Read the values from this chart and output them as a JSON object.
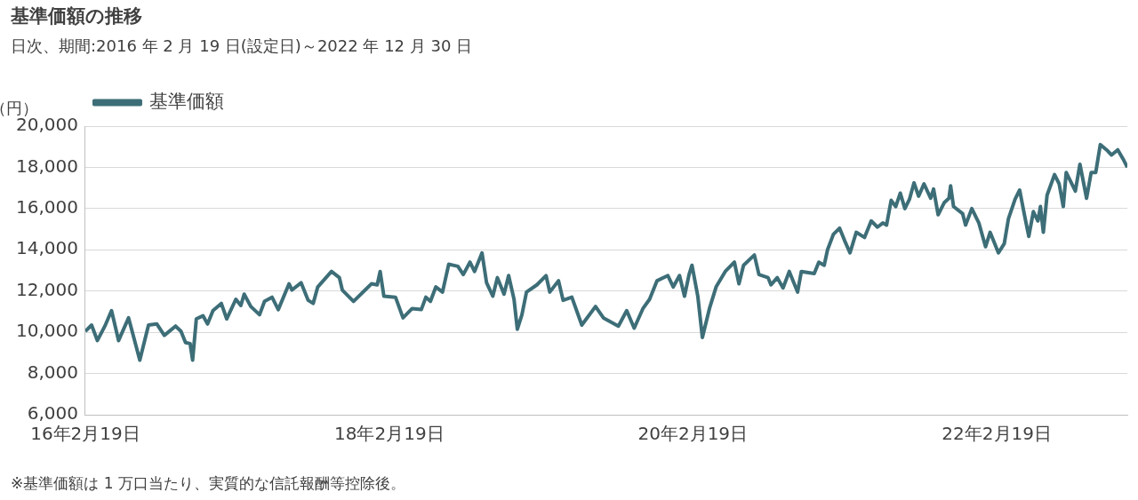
{
  "chart_data": {
    "type": "line",
    "title": "基準価額の推移",
    "subtitle": "日次、期間:2016 年 2 月 19 日(設定日)～2022 年 12 月 30 日",
    "ylabel": "（円）",
    "annotations": [
      "※基準価額は 1 万口当たり、実質的な信託報酬等控除後。"
    ],
    "xlim": [
      "2016-02-19",
      "2022-12-30"
    ],
    "xticks": [
      {
        "value": "2016-02-19",
        "label": "16年2月19日"
      },
      {
        "value": "2018-02-19",
        "label": "18年2月19日"
      },
      {
        "value": "2020-02-19",
        "label": "20年2月19日"
      },
      {
        "value": "2022-02-19",
        "label": "22年2月19日"
      }
    ],
    "ylim": [
      6000,
      20000
    ],
    "yticks": [
      {
        "value": 6000,
        "label": "6,000"
      },
      {
        "value": 8000,
        "label": "8,000"
      },
      {
        "value": 10000,
        "label": "10,000"
      },
      {
        "value": 12000,
        "label": "12,000"
      },
      {
        "value": 14000,
        "label": "14,000"
      },
      {
        "value": 16000,
        "label": "16,000"
      },
      {
        "value": 18000,
        "label": "18,000"
      },
      {
        "value": 20000,
        "label": "20,000"
      }
    ],
    "grid": "y",
    "legend": "top left",
    "marker": "none",
    "line_style": "solid",
    "series": [
      {
        "name": "基準価額",
        "color": "#3d6e78",
        "x": [
          "2016-02-19",
          "2016-03-05",
          "2016-03-19",
          "2016-04-06",
          "2016-04-22",
          "2016-05-09",
          "2016-06-02",
          "2016-06-29",
          "2016-07-20",
          "2016-08-09",
          "2016-08-27",
          "2016-09-23",
          "2016-10-06",
          "2016-10-17",
          "2016-10-28",
          "2016-11-03",
          "2016-11-12",
          "2016-11-28",
          "2016-12-09",
          "2016-12-22",
          "2017-01-11",
          "2017-01-24",
          "2017-02-15",
          "2017-02-27",
          "2017-03-07",
          "2017-03-23",
          "2017-04-13",
          "2017-04-25",
          "2017-05-13",
          "2017-05-28",
          "2017-06-23",
          "2017-06-30",
          "2017-07-22",
          "2017-08-08",
          "2017-08-20",
          "2017-08-31",
          "2017-10-03",
          "2017-10-22",
          "2017-10-29",
          "2017-11-25",
          "2017-12-23",
          "2018-01-07",
          "2018-01-21",
          "2018-01-28",
          "2018-02-06",
          "2018-03-06",
          "2018-03-24",
          "2018-04-15",
          "2018-05-07",
          "2018-05-18",
          "2018-05-29",
          "2018-06-11",
          "2018-06-27",
          "2018-07-12",
          "2018-08-03",
          "2018-08-16",
          "2018-09-01",
          "2018-09-12",
          "2018-09-30",
          "2018-10-11",
          "2018-10-26",
          "2018-11-06",
          "2018-11-22",
          "2018-12-03",
          "2018-12-16",
          "2018-12-24",
          "2019-01-04",
          "2019-01-15",
          "2019-02-09",
          "2019-03-03",
          "2019-03-12",
          "2019-04-02",
          "2019-04-13",
          "2019-05-04",
          "2019-05-28",
          "2019-06-30",
          "2019-07-19",
          "2019-08-24",
          "2019-09-13",
          "2019-10-01",
          "2019-10-22",
          "2019-11-07",
          "2019-11-25",
          "2019-12-21",
          "2020-01-03",
          "2020-01-18",
          "2020-01-30",
          "2020-02-10",
          "2020-02-17",
          "2020-03-02",
          "2020-03-13",
          "2020-03-30",
          "2020-04-15",
          "2020-05-07",
          "2020-05-29",
          "2020-06-09",
          "2020-06-20",
          "2020-07-16",
          "2020-07-27",
          "2020-08-18",
          "2020-08-25",
          "2020-09-09",
          "2020-09-23",
          "2020-10-08",
          "2020-10-28",
          "2020-11-06",
          "2020-12-07",
          "2020-12-18",
          "2020-12-31",
          "2021-01-08",
          "2021-01-22",
          "2021-02-06",
          "2021-02-18",
          "2021-03-03",
          "2021-03-18",
          "2021-04-07",
          "2021-04-23",
          "2021-05-08",
          "2021-05-21",
          "2021-05-30",
          "2021-06-10",
          "2021-06-21",
          "2021-07-02",
          "2021-07-13",
          "2021-07-24",
          "2021-08-04",
          "2021-08-15",
          "2021-08-28",
          "2021-09-13",
          "2021-09-20",
          "2021-10-01",
          "2021-10-16",
          "2021-10-27",
          "2021-10-31",
          "2021-11-07",
          "2021-11-29",
          "2021-12-06",
          "2021-12-21",
          "2022-01-07",
          "2022-01-23",
          "2022-02-03",
          "2022-02-23",
          "2022-03-09",
          "2022-03-19",
          "2022-04-04",
          "2022-04-15",
          "2022-04-26",
          "2022-05-07",
          "2022-05-18",
          "2022-05-29",
          "2022-06-04",
          "2022-06-11",
          "2022-06-20",
          "2022-07-08",
          "2022-07-19",
          "2022-07-29",
          "2022-08-05",
          "2022-08-16",
          "2022-08-27",
          "2022-09-07",
          "2022-09-23",
          "2022-10-04",
          "2022-10-15",
          "2022-10-26",
          "2022-11-10",
          "2022-11-22",
          "2022-12-07",
          "2022-12-20",
          "2022-12-30"
        ],
        "values": [
          10050,
          10350,
          9600,
          10300,
          11050,
          9600,
          10700,
          8650,
          10350,
          10400,
          9850,
          10300,
          10050,
          9500,
          9450,
          8650,
          10650,
          10800,
          10400,
          11050,
          11400,
          10650,
          11600,
          11300,
          11850,
          11250,
          10850,
          11500,
          11700,
          11100,
          12350,
          12050,
          12400,
          11550,
          11400,
          12200,
          12950,
          12650,
          12050,
          11500,
          12050,
          12350,
          12300,
          12950,
          11750,
          11700,
          10700,
          11150,
          11100,
          11700,
          11500,
          12200,
          11950,
          13300,
          13200,
          12800,
          13400,
          12950,
          13850,
          12400,
          11750,
          12650,
          11850,
          12750,
          11600,
          10150,
          10850,
          11950,
          12300,
          12750,
          11950,
          12500,
          11550,
          11700,
          10350,
          11250,
          10700,
          10300,
          11050,
          10200,
          11150,
          11600,
          12500,
          12750,
          12200,
          12750,
          11750,
          12800,
          13250,
          11750,
          9750,
          11150,
          12200,
          12950,
          13400,
          12350,
          13250,
          13750,
          12800,
          12650,
          12300,
          12650,
          12150,
          12950,
          11950,
          12950,
          12850,
          13400,
          13250,
          14000,
          14750,
          15050,
          14450,
          13850,
          14850,
          14600,
          15400,
          15100,
          15300,
          15200,
          16400,
          16100,
          16750,
          16000,
          16450,
          17250,
          16600,
          17200,
          16500,
          16950,
          15700,
          16300,
          16500,
          17100,
          16100,
          15750,
          15200,
          16000,
          15300,
          14150,
          14850,
          13850,
          14300,
          15500,
          16450,
          16900,
          15750,
          14650,
          15850,
          15400,
          16100,
          14850,
          16650,
          17650,
          17200,
          16100,
          17750,
          17300,
          16850,
          18150,
          16500,
          17750,
          17750,
          19100,
          18850,
          18600,
          18850,
          18400,
          18000
        ]
      }
    ]
  }
}
